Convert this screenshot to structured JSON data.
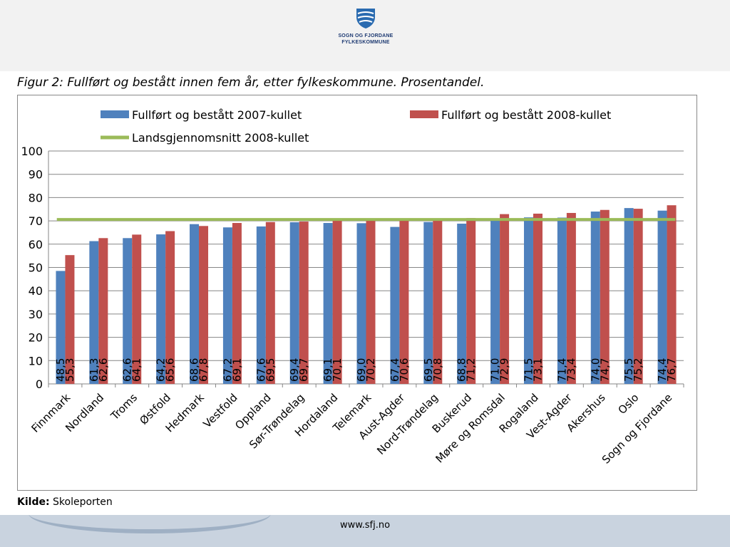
{
  "header": {
    "logo_line1": "SOGN OG FJORDANE",
    "logo_line2": "FYLKESKOMMUNE"
  },
  "figure_title": "Figur 2: Fullført og bestått innen fem år, etter fylkeskommune. Prosentandel.",
  "source": {
    "label": "Kilde:",
    "text": "Skoleporten"
  },
  "footer": {
    "url": "www.sfj.no"
  },
  "colors": {
    "series_2007": "#4f81bd",
    "series_2008": "#c0504d",
    "average_line": "#9bbb59",
    "grid": "#868686"
  },
  "chart_data": {
    "type": "bar",
    "title": "",
    "xlabel": "",
    "ylabel": "",
    "ylim": [
      0,
      100
    ],
    "yticks": [
      0,
      10,
      20,
      30,
      40,
      50,
      60,
      70,
      80,
      90,
      100
    ],
    "grid": true,
    "legend_position": "top",
    "categories": [
      "Finnmark",
      "Nordland",
      "Troms",
      "Østfold",
      "Hedmark",
      "Vestfold",
      "Oppland",
      "Sør-Trøndelag",
      "Hordaland",
      "Telemark",
      "Aust-Agder",
      "Nord-Trøndelag",
      "Buskerud",
      "Møre og Romsdal",
      "Rogaland",
      "Vest-Agder",
      "Akershus",
      "Oslo",
      "Sogn og Fjordane"
    ],
    "series": [
      {
        "name": "Fullført og bestått 2007-kullet",
        "values": [
          48.5,
          61.3,
          62.6,
          64.2,
          68.6,
          67.2,
          67.6,
          69.4,
          69.1,
          69.0,
          67.4,
          69.5,
          68.8,
          71.0,
          71.5,
          71.4,
          74.0,
          75.5,
          74.4
        ],
        "labels": [
          "48,5",
          "61,3",
          "62,6",
          "64,2",
          "68,6",
          "67,2",
          "67,6",
          "69,4",
          "69,1",
          "69,0",
          "67,4",
          "69,5",
          "68,8",
          "71,0",
          "71,5",
          "71,4",
          "74,0",
          "75,5",
          "74,4"
        ]
      },
      {
        "name": "Fullført og bestått 2008-kullet",
        "values": [
          55.3,
          62.6,
          64.1,
          65.6,
          67.8,
          69.1,
          69.5,
          69.7,
          70.1,
          70.2,
          70.6,
          70.8,
          71.2,
          72.9,
          73.1,
          73.4,
          74.7,
          75.2,
          76.7
        ],
        "labels": [
          "55,3",
          "62,6",
          "64,1",
          "65,6",
          "67,8",
          "69,1",
          "69,5",
          "69,7",
          "70,1",
          "70,2",
          "70,6",
          "70,8",
          "71,2",
          "72,9",
          "73,1",
          "73,4",
          "74,7",
          "75,2",
          "76,7"
        ]
      },
      {
        "name": "Landsgjennomsnitt 2008-kullet",
        "type": "line",
        "value": 70.6
      }
    ]
  }
}
